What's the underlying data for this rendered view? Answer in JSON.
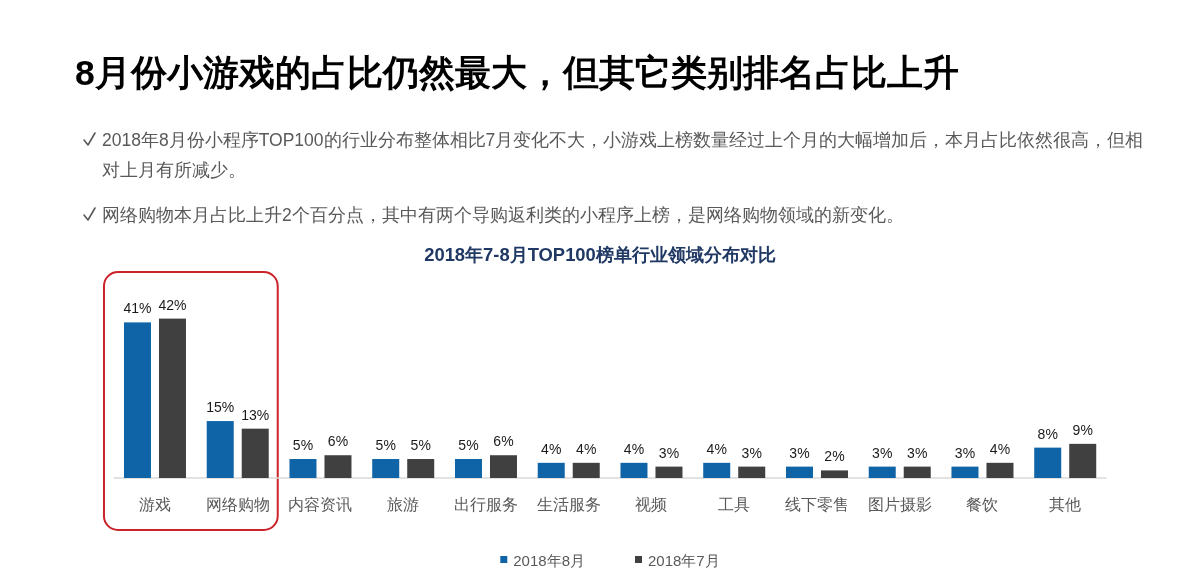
{
  "chart_data": {
    "type": "bar",
    "title": "8月份小游戏的占比仍然最大，但其它类别排名占比上升",
    "subtitle": "2018年7-8月TOP100榜单行业领域分布对比",
    "annotations": [
      "2018年8月份小程序TOP100的行业分布整体相比7月变化不大，小游戏上榜数量经过上个月的大幅增加后，本月占比依然很高，但相对上月有所减少。",
      "网络购物本月占比上升2个百分点，其中有两个导购返利类的小程序上榜，是网络购物领域的新变化。"
    ],
    "categories": [
      "游戏",
      "网络购物",
      "内容资讯",
      "旅游",
      "出行服务",
      "生活服务",
      "视频",
      "工具",
      "线下零售",
      "图片摄影",
      "餐饮",
      "其他"
    ],
    "series": [
      {
        "name": "2018年8月",
        "color": "#0e64a6",
        "values": [
          41,
          15,
          5,
          5,
          5,
          4,
          4,
          4,
          3,
          3,
          3,
          8
        ],
        "value_labels": [
          "41%",
          "15%",
          "5%",
          "5%",
          "5%",
          "4%",
          "4%",
          "4%",
          "3%",
          "3%",
          "3%",
          "8%"
        ]
      },
      {
        "name": "2018年7月",
        "color": "#404040",
        "values": [
          42,
          13,
          6,
          5,
          6,
          4,
          3,
          3,
          2,
          3,
          4,
          9
        ],
        "value_labels": [
          "42%",
          "13%",
          "6%",
          "5%",
          "6%",
          "4%",
          "3%",
          "3%",
          "2%",
          "3%",
          "4%",
          "9%"
        ]
      }
    ],
    "legend": "bottom"
  }
}
